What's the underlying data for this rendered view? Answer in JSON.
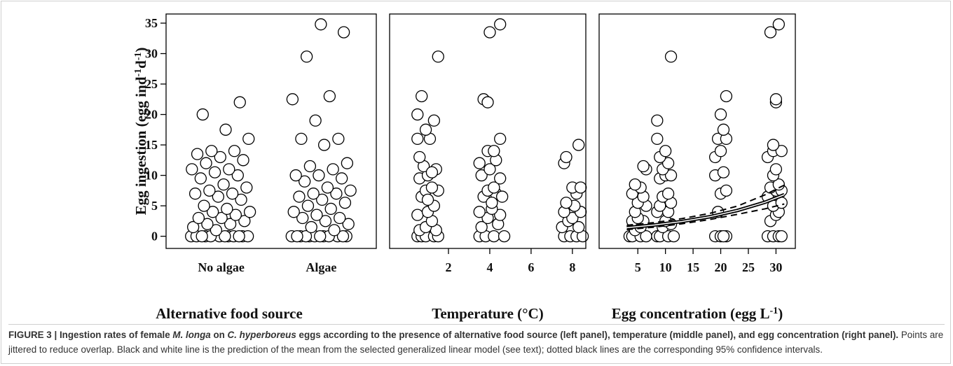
{
  "chart_data": [
    {
      "type": "strip",
      "categories": [
        "No algae",
        "Algae"
      ],
      "xlabel": "Alternative food source",
      "ylabel": [
        "Egg ingestion (egg ind",
        "-1",
        "d",
        "-1",
        ")"
      ],
      "ylim": [
        -2,
        36.5
      ],
      "yticks": [
        0,
        5,
        10,
        15,
        20,
        25,
        30,
        35
      ],
      "values": [
        [
          0,
          0,
          0,
          0,
          0,
          0,
          0,
          0,
          0,
          0,
          0,
          0,
          1,
          1.5,
          2,
          2,
          2.5,
          3,
          3,
          3.5,
          4,
          4,
          4.5,
          5,
          6,
          6.5,
          7,
          7,
          7.5,
          8,
          8.5,
          9.5,
          10,
          10.5,
          11,
          11,
          12,
          12.5,
          13,
          13.5,
          14,
          14,
          16,
          17.5,
          20,
          22
        ],
        [
          0,
          0,
          0,
          0,
          0,
          0,
          0,
          0,
          0,
          0,
          0,
          0,
          1,
          1.5,
          2,
          2.5,
          3,
          3,
          3.5,
          4,
          4.5,
          5,
          5.5,
          6,
          6.5,
          7,
          7,
          7.5,
          8,
          9,
          9.5,
          10,
          10,
          11,
          11.5,
          12,
          15,
          16,
          16,
          19,
          22.5,
          23,
          29.5,
          33.5,
          34.8
        ]
      ]
    },
    {
      "type": "scatter",
      "xlabel": "Temperature (°C)",
      "xlim": [
        -0.85,
        8.65
      ],
      "xticks": [
        2,
        4,
        6,
        8
      ],
      "ylim": [
        -2,
        36.5
      ],
      "series": [
        {
          "x": [
            0.5,
            0.7,
            0.9,
            1.3,
            1.5,
            0.6,
            1.4,
            0.9,
            1.2,
            0.5,
            1.0,
            1.3,
            0.7,
            1.5,
            0.9,
            1.2,
            0.6,
            1.0,
            1.4,
            0.8,
            1.2,
            0.5,
            1.1,
            0.9,
            1.3,
            0.5,
            0.7,
            1.5,
            1.0,
            0.6,
            3.5,
            3.8,
            4.2,
            4.7,
            3.6,
            4.4,
            3.9,
            4.5,
            3.5,
            4.1,
            3.7,
            4.3,
            4.6,
            3.9,
            4.2,
            3.6,
            4.5,
            4.0,
            3.5,
            4.3,
            3.9,
            4.2,
            4.5,
            3.7,
            3.9,
            4.0,
            4.5,
            4.1,
            7.6,
            7.9,
            8.2,
            8.5,
            7.5,
            8.3,
            7.8,
            8.0,
            7.6,
            8.4,
            8.1,
            7.7,
            8.2,
            8.0,
            8.4,
            7.6,
            7.7,
            8.3
          ],
          "values": [
            0,
            0,
            0,
            0,
            0,
            1,
            1,
            1.5,
            2.5,
            3.5,
            4,
            5,
            6.5,
            7.5,
            7.5,
            8,
            9.5,
            10,
            11,
            11.5,
            10.5,
            16,
            16,
            17.5,
            19,
            20,
            23,
            29.5,
            6,
            13,
            0,
            0,
            0,
            0,
            1.5,
            2,
            3,
            3.5,
            4,
            4.5,
            6.5,
            7,
            6.5,
            7.5,
            8,
            10,
            9.5,
            11,
            12,
            12.5,
            14,
            14,
            16,
            22.5,
            22,
            33.5,
            34.8,
            5.5,
            0,
            0,
            0,
            0,
            1.5,
            1.5,
            2.5,
            3,
            4,
            4,
            5,
            5.5,
            7,
            8,
            8,
            12,
            13,
            15
          ]
        }
      ]
    },
    {
      "type": "scatter",
      "xlabel": [
        "Egg concentration (egg L",
        "-1",
        ")"
      ],
      "xlim": [
        -2,
        33.5
      ],
      "xticks": [
        5,
        10,
        15,
        20,
        25,
        30
      ],
      "ylim": [
        -2,
        36.5
      ],
      "series": [
        {
          "x": [
            3.5,
            4,
            5.5,
            6.5,
            4.5,
            5.5,
            4,
            6,
            5,
            4.5,
            6.5,
            5,
            4,
            6,
            5.5,
            4.5,
            6.5,
            6,
            8.5,
            9,
            10.5,
            11.5,
            9.5,
            11,
            10,
            8.5,
            10.5,
            9,
            11,
            9.5,
            10.5,
            9,
            10,
            11,
            9.5,
            10.5,
            9,
            10,
            8.5,
            8.5,
            11,
            19,
            20,
            21,
            20.5,
            19.5,
            20,
            21,
            19,
            20.5,
            19,
            20,
            19.5,
            21,
            20.5,
            20,
            21,
            28.5,
            29.5,
            30.5,
            31,
            29,
            30,
            30.5,
            29.5,
            31,
            28.5,
            30,
            31,
            29,
            30.5,
            29.5,
            30,
            28.5,
            29.5,
            31,
            29.5,
            30,
            30,
            29,
            30.5
          ],
          "values": [
            0,
            0,
            0,
            0,
            1,
            1.5,
            2.5,
            2.5,
            3,
            4,
            5,
            5.5,
            7,
            6.5,
            8,
            8.5,
            11,
            11.5,
            0,
            0,
            0,
            0,
            1.5,
            2,
            2.5,
            4,
            4,
            5,
            5.5,
            6.5,
            7,
            9.5,
            10,
            10,
            11,
            12,
            13,
            14,
            16,
            19,
            29.5,
            0,
            0,
            0,
            0,
            4,
            7,
            7.5,
            10,
            10.5,
            13,
            14,
            16,
            16,
            17.5,
            20,
            23,
            0,
            0,
            0,
            0,
            2.5,
            3.5,
            4,
            5,
            5.5,
            6.5,
            7.5,
            7.5,
            8,
            8.5,
            10,
            11,
            13,
            14,
            14,
            15,
            22,
            22.5,
            33.5,
            34.8
          ]
        },
        {
          "line": "dashed",
          "x": [
            3,
            8,
            13,
            18,
            23,
            28,
            31.5
          ],
          "values": [
            1.1,
            1.5,
            2.05,
            2.75,
            3.6,
            4.5,
            5.3
          ]
        },
        {
          "line": "dashed",
          "x": [
            3,
            8,
            13,
            18,
            23,
            28,
            31.5
          ],
          "values": [
            1.8,
            2.25,
            2.9,
            3.75,
            4.95,
            6.8,
            8.4
          ]
        },
        {
          "line": "solid",
          "x": [
            3,
            8,
            13,
            18,
            23,
            28,
            31.5
          ],
          "values": [
            1.4,
            1.85,
            2.43,
            3.2,
            4.23,
            5.58,
            6.82
          ]
        }
      ]
    }
  ],
  "caption": [
    {
      "style": "b",
      "text": "FIGURE 3 | Ingestion rates of female "
    },
    {
      "style": "b i",
      "text": "M. longa"
    },
    {
      "style": "b",
      "text": " on "
    },
    {
      "style": "b i",
      "text": "C. hyperboreus"
    },
    {
      "style": "b",
      "text": " eggs according to the presence of alternative food source (left panel), temperature (middle panel), and egg concentration (right panel)."
    },
    {
      "style": "",
      "text": " Points are jittered to reduce overlap. Black and white line is the prediction of the mean from the selected generalized linear model (see text); dotted black lines are the corresponding 95% confidence intervals."
    }
  ]
}
